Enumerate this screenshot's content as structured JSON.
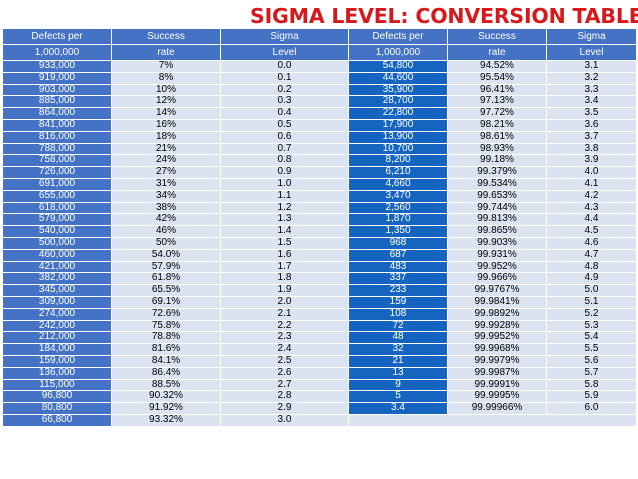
{
  "title": "SIGMA LEVEL: CONVERSION TABLE",
  "colors": {
    "title": "#d7191c",
    "header": "#4472c4",
    "row_light": "#dbe3f0",
    "highlight": "#1565c0"
  },
  "headers": [
    [
      "Defects per",
      "1,000,000"
    ],
    [
      "Success",
      "rate"
    ],
    [
      "Sigma",
      "Level"
    ],
    [
      "Defects per",
      "1,000,000"
    ],
    [
      "Success",
      "rate"
    ],
    [
      "Sigma",
      "Level"
    ]
  ],
  "rows": [
    [
      "933,000",
      "7%",
      "0.0",
      "54,800",
      "94.52%",
      "3.1"
    ],
    [
      "919,000",
      "8%",
      "0.1",
      "44,600",
      "95.54%",
      "3.2"
    ],
    [
      "903,000",
      "10%",
      "0.2",
      "35,900",
      "96.41%",
      "3.3"
    ],
    [
      "885,000",
      "12%",
      "0.3",
      "28,700",
      "97.13%",
      "3.4"
    ],
    [
      "864,000",
      "14%",
      "0.4",
      "22,800",
      "97.72%",
      "3.5"
    ],
    [
      "841,000",
      "16%",
      "0.5",
      "17,900",
      "98.21%",
      "3.6"
    ],
    [
      "816,000",
      "18%",
      "0.6",
      "13,900",
      "98.61%",
      "3.7"
    ],
    [
      "788,000",
      "21%",
      "0.7",
      "10,700",
      "98.93%",
      "3.8"
    ],
    [
      "758,000",
      "24%",
      "0.8",
      "8,200",
      "99.18%",
      "3.9"
    ],
    [
      "726,000",
      "27%",
      "0.9",
      "6,210",
      "99.379%",
      "4.0"
    ],
    [
      "691,000",
      "31%",
      "1.0",
      "4,660",
      "99.534%",
      "4.1"
    ],
    [
      "655,000",
      "34%",
      "1.1",
      "3,470",
      "99.653%",
      "4.2"
    ],
    [
      "618,000",
      "38%",
      "1.2",
      "2,560",
      "99.744%",
      "4.3"
    ],
    [
      "579,000",
      "42%",
      "1.3",
      "1,870",
      "99.813%",
      "4.4"
    ],
    [
      "540,000",
      "46%",
      "1.4",
      "1,350",
      "99.865%",
      "4.5"
    ],
    [
      "500,000",
      "50%",
      "1.5",
      "968",
      "99.903%",
      "4.6"
    ],
    [
      "460,000",
      "54.0%",
      "1.6",
      "687",
      "99.931%",
      "4.7"
    ],
    [
      "421,000",
      "57.9%",
      "1.7",
      "483",
      "99.952%",
      "4.8"
    ],
    [
      "382,000",
      "61.8%",
      "1.8",
      "337",
      "99.966%",
      "4.9"
    ],
    [
      "345,000",
      "65.5%",
      "1.9",
      "233",
      "99.9767%",
      "5.0"
    ],
    [
      "309,000",
      "69.1%",
      "2.0",
      "159",
      "99.9841%",
      "5.1"
    ],
    [
      "274,000",
      "72.6%",
      "2.1",
      "108",
      "99.9892%",
      "5.2"
    ],
    [
      "242,000",
      "75.8%",
      "2.2",
      "72",
      "99.9928%",
      "5.3"
    ],
    [
      "212,000",
      "78.8%",
      "2.3",
      "48",
      "99.9952%",
      "5.4"
    ],
    [
      "184,000",
      "81.6%",
      "2.4",
      "32",
      "99.9968%",
      "5.5"
    ],
    [
      "159,000",
      "84.1%",
      "2.5",
      "21",
      "99.9979%",
      "5.6"
    ],
    [
      "136,000",
      "86.4%",
      "2.6",
      "13",
      "99.9987%",
      "5.7"
    ],
    [
      "115,000",
      "88.5%",
      "2.7",
      "9",
      "99.9991%",
      "5.8"
    ],
    [
      "96,800",
      "90.32%",
      "2.8",
      "5",
      "99.9995%",
      "5.9"
    ],
    [
      "80,800",
      "91.92%",
      "2.9",
      "3.4",
      "99.99966%",
      "6.0"
    ],
    [
      "66,800",
      "93.32%",
      "3.0",
      null,
      null,
      null
    ]
  ]
}
